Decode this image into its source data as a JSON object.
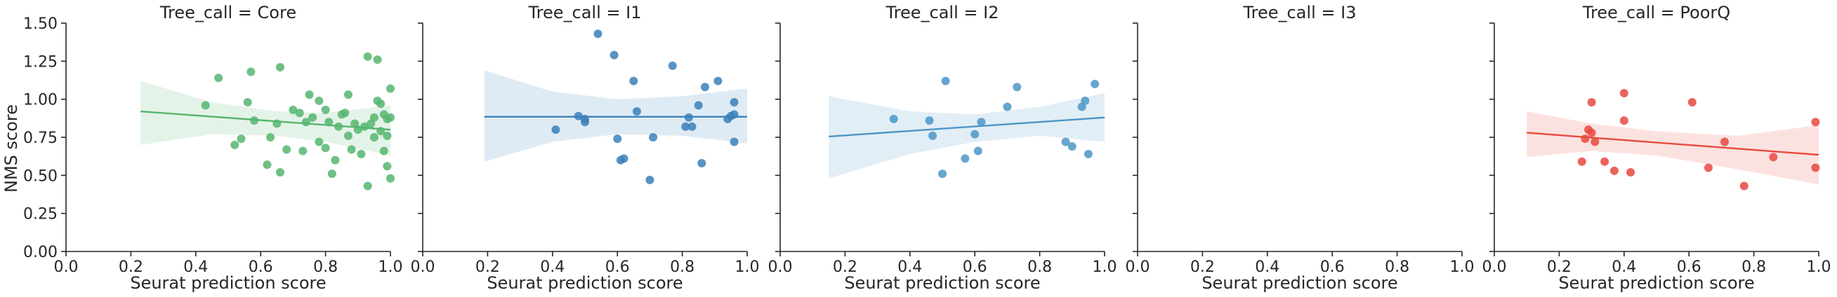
{
  "chart_data": {
    "type": "scatter",
    "ylabel": "NMS score",
    "xlabel": "Seurat prediction score",
    "xlim": [
      0.0,
      1.0
    ],
    "ylim": [
      0.0,
      1.5
    ],
    "xticks": [
      "0.0",
      "0.2",
      "0.4",
      "0.6",
      "0.8",
      "1.0"
    ],
    "yticks": [
      "0.00",
      "0.25",
      "0.50",
      "0.75",
      "1.00",
      "1.25",
      "1.50"
    ],
    "grid": false,
    "panels": [
      {
        "title": "Tree_call = Core",
        "color": "#55b56f",
        "fit": {
          "x0": 0.23,
          "y0": 0.92,
          "x1": 1.0,
          "y1": 0.8
        },
        "band": {
          "x": [
            0.23,
            0.45,
            0.65,
            0.8,
            1.0
          ],
          "upper": [
            1.12,
            0.98,
            0.92,
            0.91,
            0.96
          ],
          "lower": [
            0.7,
            0.77,
            0.76,
            0.72,
            0.63
          ]
        },
        "points": [
          [
            0.43,
            0.96
          ],
          [
            0.47,
            1.14
          ],
          [
            0.52,
            0.7
          ],
          [
            0.54,
            0.74
          ],
          [
            0.56,
            0.98
          ],
          [
            0.57,
            1.18
          ],
          [
            0.58,
            0.86
          ],
          [
            0.62,
            0.57
          ],
          [
            0.63,
            0.75
          ],
          [
            0.65,
            0.84
          ],
          [
            0.66,
            1.21
          ],
          [
            0.66,
            0.52
          ],
          [
            0.68,
            0.67
          ],
          [
            0.7,
            0.93
          ],
          [
            0.72,
            0.91
          ],
          [
            0.73,
            0.66
          ],
          [
            0.74,
            0.85
          ],
          [
            0.75,
            1.03
          ],
          [
            0.76,
            0.88
          ],
          [
            0.78,
            0.99
          ],
          [
            0.78,
            0.72
          ],
          [
            0.8,
            0.93
          ],
          [
            0.8,
            0.68
          ],
          [
            0.81,
            0.85
          ],
          [
            0.82,
            0.51
          ],
          [
            0.83,
            0.6
          ],
          [
            0.84,
            0.82
          ],
          [
            0.85,
            0.9
          ],
          [
            0.86,
            0.91
          ],
          [
            0.87,
            1.03
          ],
          [
            0.87,
            0.76
          ],
          [
            0.88,
            0.67
          ],
          [
            0.89,
            0.84
          ],
          [
            0.9,
            0.8
          ],
          [
            0.91,
            0.64
          ],
          [
            0.92,
            0.82
          ],
          [
            0.93,
            1.28
          ],
          [
            0.93,
            0.43
          ],
          [
            0.94,
            0.84
          ],
          [
            0.95,
            0.88
          ],
          [
            0.95,
            0.75
          ],
          [
            0.96,
            1.26
          ],
          [
            0.96,
            0.99
          ],
          [
            0.97,
            0.97
          ],
          [
            0.97,
            0.79
          ],
          [
            0.98,
            0.66
          ],
          [
            0.98,
            0.9
          ],
          [
            0.99,
            0.87
          ],
          [
            0.99,
            0.76
          ],
          [
            0.99,
            0.56
          ],
          [
            1.0,
            1.07
          ],
          [
            1.0,
            0.88
          ],
          [
            1.0,
            0.48
          ]
        ]
      },
      {
        "title": "Tree_call = I1",
        "color": "#3a80ba",
        "fit": {
          "x0": 0.19,
          "y0": 0.885,
          "x1": 1.0,
          "y1": 0.885
        },
        "band": {
          "x": [
            0.19,
            0.4,
            0.6,
            0.8,
            1.0
          ],
          "upper": [
            1.19,
            1.05,
            1.0,
            1.02,
            1.07
          ],
          "lower": [
            0.59,
            0.72,
            0.77,
            0.76,
            0.71
          ]
        },
        "points": [
          [
            0.41,
            0.8
          ],
          [
            0.48,
            0.89
          ],
          [
            0.5,
            0.85
          ],
          [
            0.5,
            0.87
          ],
          [
            0.54,
            1.43
          ],
          [
            0.59,
            1.29
          ],
          [
            0.6,
            0.74
          ],
          [
            0.61,
            0.6
          ],
          [
            0.62,
            0.61
          ],
          [
            0.65,
            1.12
          ],
          [
            0.66,
            0.92
          ],
          [
            0.7,
            0.47
          ],
          [
            0.71,
            0.75
          ],
          [
            0.77,
            1.22
          ],
          [
            0.81,
            0.82
          ],
          [
            0.82,
            0.88
          ],
          [
            0.83,
            0.82
          ],
          [
            0.85,
            0.96
          ],
          [
            0.86,
            0.58
          ],
          [
            0.87,
            1.08
          ],
          [
            0.91,
            1.12
          ],
          [
            0.94,
            0.87
          ],
          [
            0.95,
            0.89
          ],
          [
            0.96,
            0.98
          ],
          [
            0.96,
            0.9
          ],
          [
            0.96,
            0.72
          ]
        ]
      },
      {
        "title": "Tree_call = I2",
        "color": "#4c96c7",
        "fit": {
          "x0": 0.15,
          "y0": 0.755,
          "x1": 1.0,
          "y1": 0.88
        },
        "band": {
          "x": [
            0.15,
            0.4,
            0.6,
            0.8,
            1.0
          ],
          "upper": [
            1.02,
            0.92,
            0.9,
            0.95,
            1.04
          ],
          "lower": [
            0.48,
            0.64,
            0.72,
            0.76,
            0.72
          ]
        },
        "points": [
          [
            0.35,
            0.87
          ],
          [
            0.46,
            0.86
          ],
          [
            0.47,
            0.76
          ],
          [
            0.5,
            0.51
          ],
          [
            0.51,
            1.12
          ],
          [
            0.57,
            0.61
          ],
          [
            0.6,
            0.77
          ],
          [
            0.61,
            0.66
          ],
          [
            0.62,
            0.85
          ],
          [
            0.7,
            0.95
          ],
          [
            0.73,
            1.08
          ],
          [
            0.88,
            0.72
          ],
          [
            0.9,
            0.69
          ],
          [
            0.93,
            0.95
          ],
          [
            0.94,
            0.99
          ],
          [
            0.95,
            0.64
          ],
          [
            0.97,
            1.1
          ]
        ]
      },
      {
        "title": "Tree_call = I3",
        "color": "#3a80ba",
        "points": []
      },
      {
        "title": "Tree_call = PoorQ",
        "color": "#e8493f",
        "fit": {
          "x0": 0.1,
          "y0": 0.78,
          "x1": 1.0,
          "y1": 0.635
        },
        "band": {
          "x": [
            0.1,
            0.3,
            0.5,
            0.75,
            1.0
          ],
          "upper": [
            0.92,
            0.84,
            0.79,
            0.76,
            0.83
          ],
          "lower": [
            0.62,
            0.66,
            0.63,
            0.54,
            0.44
          ]
        },
        "points": [
          [
            0.27,
            0.59
          ],
          [
            0.28,
            0.74
          ],
          [
            0.29,
            0.8
          ],
          [
            0.3,
            0.78
          ],
          [
            0.3,
            0.98
          ],
          [
            0.31,
            0.72
          ],
          [
            0.34,
            0.59
          ],
          [
            0.37,
            0.53
          ],
          [
            0.4,
            1.04
          ],
          [
            0.4,
            0.86
          ],
          [
            0.42,
            0.52
          ],
          [
            0.61,
            0.98
          ],
          [
            0.66,
            0.55
          ],
          [
            0.71,
            0.72
          ],
          [
            0.77,
            0.43
          ],
          [
            0.86,
            0.62
          ],
          [
            0.99,
            0.85
          ],
          [
            0.99,
            0.55
          ]
        ]
      }
    ]
  }
}
